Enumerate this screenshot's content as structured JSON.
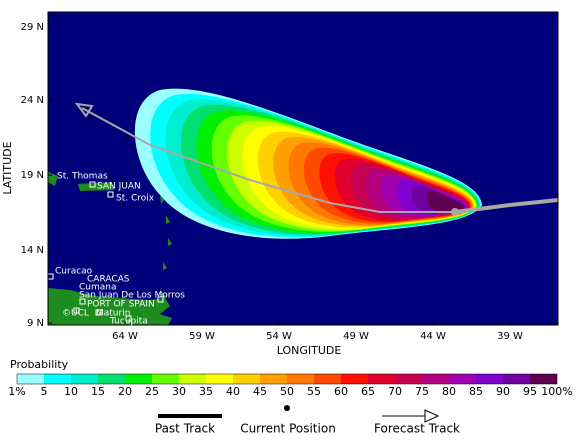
{
  "map": {
    "y_axis": {
      "title": "LATITUDE",
      "ticks": [
        "29 N",
        "24 N",
        "19 N",
        "14 N",
        "9 N"
      ]
    },
    "x_axis": {
      "title": "LONGITUDE",
      "ticks": [
        "64 W",
        "59 W",
        "54 W",
        "49 W",
        "44 W",
        "39 W"
      ]
    },
    "places": [
      {
        "name": "St. Thomas"
      },
      {
        "name": "SAN JUAN"
      },
      {
        "name": "St. Croix"
      },
      {
        "name": "Curacao"
      },
      {
        "name": "CARACAS"
      },
      {
        "name": "Cumana"
      },
      {
        "name": "San Juan De Los Morros"
      },
      {
        "name": "PORT OF SPAIN"
      },
      {
        "name": "Maturin"
      },
      {
        "name": "Tucupita"
      }
    ],
    "watermark": "©UCL",
    "legend": {
      "title": "Probability",
      "scale_labels": [
        "1%",
        "5",
        "10",
        "15",
        "20",
        "25",
        "30",
        "35",
        "40",
        "45",
        "50",
        "55",
        "60",
        "65",
        "70",
        "75",
        "80",
        "85",
        "90",
        "95",
        "100%"
      ],
      "colors": [
        "#99ffff",
        "#00ffff",
        "#00eed0",
        "#00e070",
        "#00f000",
        "#66ff00",
        "#ccff00",
        "#ffff00",
        "#ffd000",
        "#ffa000",
        "#ff7800",
        "#ff4800",
        "#ff1000",
        "#e0002a",
        "#c80050",
        "#b40080",
        "#a000b0",
        "#8000d0",
        "#7000a0",
        "#600050"
      ]
    },
    "keys": [
      {
        "label": "Past Track"
      },
      {
        "label": "Current Position"
      },
      {
        "label": "Forecast Track"
      }
    ]
  }
}
